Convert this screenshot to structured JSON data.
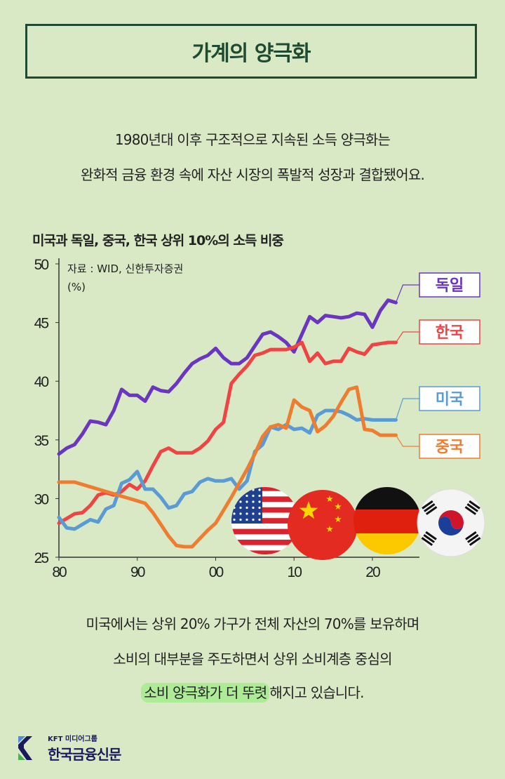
{
  "header": {
    "title": "가계의 양극화"
  },
  "intro": {
    "line1": "1980년대 이후 구조적으로 지속된 소득 양극화는",
    "line2": "완화적 금융 환경 속에 자산 시장의 폭발적 성장과 결합됐어요."
  },
  "colors": {
    "background": "#d9e9c5",
    "title": "#1e4a32",
    "germany": "#6a35c0",
    "korea": "#ef4444",
    "us": "#5b9bd5",
    "china": "#ee7d31",
    "highlight": "#aeeb97"
  },
  "chart_data": {
    "type": "line",
    "title": "미국과 독일, 중국, 한국 상위 10%의 소득 비중",
    "source": "자료 : WID, 신한투자증권",
    "ylabel": "(%)",
    "ylim": [
      25,
      50
    ],
    "xlim": [
      1980,
      2026
    ],
    "yticks": [
      "50",
      "45",
      "40",
      "35",
      "30",
      "25"
    ],
    "xticks": [
      "80",
      "90",
      "00",
      "10",
      "20"
    ],
    "grid": false,
    "legend": "right (line-end labels)",
    "x": [
      1980,
      1981,
      1982,
      1983,
      1984,
      1985,
      1986,
      1987,
      1988,
      1989,
      1990,
      1991,
      1992,
      1993,
      1994,
      1995,
      1996,
      1997,
      1998,
      1999,
      2000,
      2001,
      2002,
      2003,
      2004,
      2005,
      2006,
      2007,
      2008,
      2009,
      2010,
      2011,
      2012,
      2013,
      2014,
      2015,
      2016,
      2017,
      2018,
      2019,
      2020,
      2021,
      2022,
      2023
    ],
    "series": [
      {
        "name": "독일",
        "color": "#6a35c0",
        "values": [
          33.8,
          34.3,
          34.6,
          35.5,
          36.6,
          36.5,
          36.3,
          37.5,
          39.3,
          38.8,
          38.8,
          38.3,
          39.5,
          39.2,
          39.1,
          39.8,
          40.7,
          41.5,
          41.9,
          42.2,
          42.8,
          42.0,
          41.5,
          41.5,
          42.0,
          43.0,
          44.0,
          44.2,
          43.8,
          43.3,
          42.5,
          44.0,
          45.5,
          45.0,
          45.6,
          45.5,
          45.4,
          45.5,
          45.8,
          45.7,
          44.6,
          46.0,
          46.9,
          46.7
        ]
      },
      {
        "name": "한국",
        "color": "#ef4444",
        "values": [
          27.9,
          28.3,
          28.7,
          28.8,
          29.4,
          30.3,
          30.5,
          30.3,
          30.6,
          31.2,
          30.8,
          31.5,
          32.8,
          34.0,
          34.3,
          33.9,
          33.9,
          33.9,
          34.3,
          34.9,
          35.9,
          36.5,
          39.8,
          40.6,
          41.3,
          42.2,
          42.4,
          42.7,
          42.7,
          42.7,
          42.9,
          43.3,
          41.7,
          42.4,
          41.5,
          41.7,
          41.7,
          42.8,
          42.5,
          42.3,
          43.1,
          43.2,
          43.3,
          43.3
        ]
      },
      {
        "name": "미국",
        "color": "#5b9bd5",
        "values": [
          28.4,
          27.5,
          27.4,
          27.8,
          28.2,
          28.0,
          29.1,
          29.4,
          31.3,
          31.6,
          32.3,
          30.8,
          30.8,
          30.1,
          29.2,
          29.4,
          30.4,
          30.6,
          31.4,
          31.7,
          31.5,
          31.5,
          31.7,
          30.8,
          31.5,
          34.0,
          34.6,
          36.1,
          35.9,
          36.3,
          35.9,
          36.0,
          35.6,
          37.1,
          37.5,
          37.5,
          37.4,
          37.1,
          36.7,
          36.8,
          36.7,
          36.7,
          36.7,
          36.7
        ]
      },
      {
        "name": "중국",
        "color": "#ee7d31",
        "values": [
          31.4,
          31.4,
          31.4,
          31.2,
          31.0,
          30.8,
          30.6,
          30.4,
          30.2,
          30.0,
          29.8,
          29.6,
          28.8,
          27.8,
          26.8,
          26.0,
          25.9,
          25.9,
          26.6,
          27.3,
          27.9,
          29.0,
          30.1,
          31.3,
          32.5,
          33.8,
          35.3,
          36.1,
          36.3,
          36.0,
          38.4,
          37.8,
          37.5,
          35.7,
          36.2,
          37.0,
          38.2,
          39.3,
          39.5,
          35.9,
          35.8,
          35.4,
          35.4,
          35.4
        ]
      }
    ]
  },
  "flags": [
    "us-flag-icon",
    "china-flag-icon",
    "germany-flag-icon",
    "korea-flag-icon"
  ],
  "body": {
    "line1": "미국에서는 상위 20% 가구가 전체 자산의 70%를 보유하며",
    "line2": "소비의 대부분을 주도하면서 상위 소비계층 중심의",
    "line3_highlight": "소비 양극화가 더 뚜렷",
    "line3_rest": "해지고 있습니다."
  },
  "logo": {
    "sub": "KFT 미디어그룹",
    "main": "한국금융신문"
  }
}
